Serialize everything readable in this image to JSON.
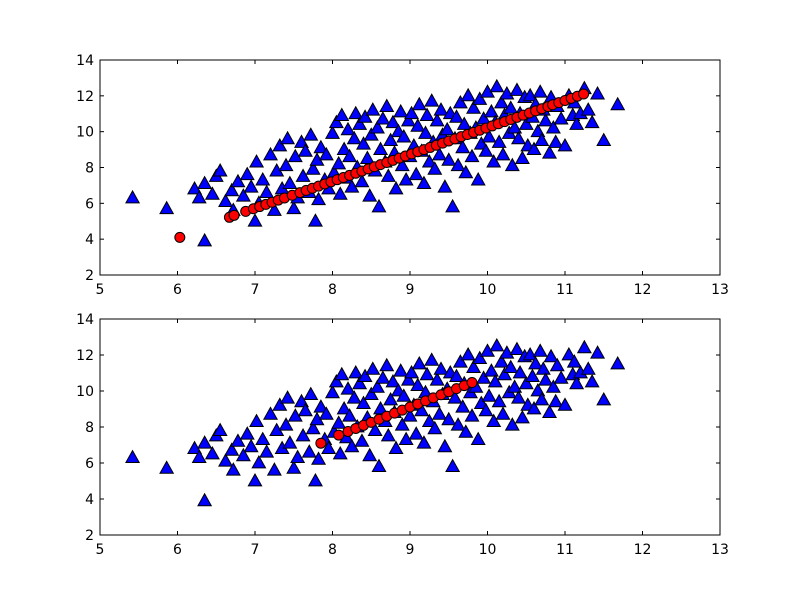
{
  "colors": {
    "triangle_fill": "#0000ff",
    "circle_fill": "#ff0000",
    "marker_edge": "#000000",
    "frame": "#000000",
    "background": "#ffffff"
  },
  "chart_data": [
    {
      "type": "scatter",
      "title": "",
      "xlabel": "",
      "ylabel": "",
      "xlim": [
        5,
        13
      ],
      "ylim": [
        2,
        14
      ],
      "xticks": [
        "5",
        "6",
        "7",
        "8",
        "9",
        "10",
        "11",
        "12",
        "13"
      ],
      "yticks": [
        "2",
        "4",
        "6",
        "8",
        "10",
        "12",
        "14"
      ],
      "grid": false,
      "series": [
        {
          "marker": "triangle",
          "color": "#0000ff",
          "points": [
            [
              5.42,
              6.3
            ],
            [
              5.86,
              5.7
            ],
            [
              6.35,
              3.9
            ],
            [
              6.22,
              6.8
            ],
            [
              6.28,
              6.3
            ],
            [
              6.35,
              7.1
            ],
            [
              6.45,
              6.5
            ],
            [
              6.5,
              7.5
            ],
            [
              6.55,
              7.8
            ],
            [
              6.62,
              6.1
            ],
            [
              6.7,
              6.7
            ],
            [
              6.72,
              5.6
            ],
            [
              6.78,
              7.2
            ],
            [
              6.85,
              6.4
            ],
            [
              6.9,
              7.6
            ],
            [
              6.95,
              6.9
            ],
            [
              7.0,
              5.0
            ],
            [
              7.02,
              8.3
            ],
            [
              7.05,
              6.0
            ],
            [
              7.1,
              7.3
            ],
            [
              7.15,
              6.6
            ],
            [
              7.2,
              8.7
            ],
            [
              7.25,
              5.6
            ],
            [
              7.28,
              7.8
            ],
            [
              7.32,
              9.2
            ],
            [
              7.35,
              6.8
            ],
            [
              7.4,
              8.1
            ],
            [
              7.42,
              9.6
            ],
            [
              7.45,
              7.1
            ],
            [
              7.5,
              5.7
            ],
            [
              7.52,
              8.6
            ],
            [
              7.55,
              6.3
            ],
            [
              7.6,
              9.4
            ],
            [
              7.62,
              7.5
            ],
            [
              7.65,
              8.9
            ],
            [
              7.7,
              6.6
            ],
            [
              7.72,
              9.8
            ],
            [
              7.75,
              7.9
            ],
            [
              7.78,
              5.0
            ],
            [
              7.8,
              8.4
            ],
            [
              7.82,
              6.2
            ],
            [
              7.85,
              9.1
            ],
            [
              7.9,
              7.3
            ],
            [
              7.92,
              8.7
            ],
            [
              7.95,
              6.8
            ],
            [
              8.0,
              9.9
            ],
            [
              8.02,
              7.7
            ],
            [
              8.05,
              10.5
            ],
            [
              8.08,
              8.2
            ],
            [
              8.1,
              6.5
            ],
            [
              8.12,
              10.9
            ],
            [
              8.15,
              9.0
            ],
            [
              8.18,
              7.4
            ],
            [
              8.2,
              10.1
            ],
            [
              8.22,
              8.6
            ],
            [
              8.25,
              6.9
            ],
            [
              8.28,
              9.6
            ],
            [
              8.3,
              11.0
            ],
            [
              8.32,
              8.0
            ],
            [
              8.35,
              10.4
            ],
            [
              8.38,
              7.2
            ],
            [
              8.4,
              9.3
            ],
            [
              8.42,
              10.8
            ],
            [
              8.45,
              8.5
            ],
            [
              8.48,
              6.4
            ],
            [
              8.5,
              9.8
            ],
            [
              8.52,
              11.2
            ],
            [
              8.55,
              7.8
            ],
            [
              8.58,
              10.2
            ],
            [
              8.6,
              5.8
            ],
            [
              8.62,
              9.0
            ],
            [
              8.65,
              10.7
            ],
            [
              8.68,
              8.3
            ],
            [
              8.7,
              11.4
            ],
            [
              8.72,
              7.5
            ],
            [
              8.75,
              9.5
            ],
            [
              8.78,
              10.5
            ],
            [
              8.8,
              8.8
            ],
            [
              8.82,
              6.8
            ],
            [
              8.85,
              10.0
            ],
            [
              8.88,
              11.1
            ],
            [
              8.9,
              8.1
            ],
            [
              8.92,
              9.7
            ],
            [
              8.95,
              7.3
            ],
            [
              8.98,
              10.6
            ],
            [
              9.0,
              8.6
            ],
            [
              9.02,
              11.0
            ],
            [
              9.05,
              9.2
            ],
            [
              9.08,
              7.6
            ],
            [
              9.1,
              10.3
            ],
            [
              9.12,
              11.5
            ],
            [
              9.15,
              8.9
            ],
            [
              9.18,
              7.1
            ],
            [
              9.2,
              9.9
            ],
            [
              9.22,
              10.9
            ],
            [
              9.25,
              8.3
            ],
            [
              9.28,
              11.7
            ],
            [
              9.3,
              9.4
            ],
            [
              9.32,
              7.9
            ],
            [
              9.35,
              10.6
            ],
            [
              9.38,
              8.7
            ],
            [
              9.4,
              11.2
            ],
            [
              9.42,
              9.8
            ],
            [
              9.45,
              6.9
            ],
            [
              9.48,
              10.1
            ],
            [
              9.5,
              8.4
            ],
            [
              9.52,
              11.0
            ],
            [
              9.55,
              5.8
            ],
            [
              9.58,
              9.6
            ],
            [
              9.6,
              10.8
            ],
            [
              9.62,
              8.1
            ],
            [
              9.65,
              11.6
            ],
            [
              9.68,
              9.1
            ],
            [
              9.7,
              10.4
            ],
            [
              9.72,
              7.7
            ],
            [
              9.75,
              12.0
            ],
            [
              9.78,
              9.9
            ],
            [
              9.8,
              8.6
            ],
            [
              9.82,
              11.3
            ],
            [
              9.85,
              10.2
            ],
            [
              9.88,
              7.3
            ],
            [
              9.9,
              11.8
            ],
            [
              9.92,
              9.3
            ],
            [
              9.95,
              10.7
            ],
            [
              9.98,
              8.9
            ],
            [
              10.0,
              12.2
            ],
            [
              10.02,
              9.7
            ],
            [
              10.05,
              11.1
            ],
            [
              10.08,
              8.3
            ],
            [
              10.1,
              10.5
            ],
            [
              10.12,
              12.5
            ],
            [
              10.15,
              9.4
            ],
            [
              10.18,
              11.6
            ],
            [
              10.2,
              8.7
            ],
            [
              10.22,
              10.9
            ],
            [
              10.25,
              12.1
            ],
            [
              10.28,
              9.9
            ],
            [
              10.3,
              11.3
            ],
            [
              10.32,
              8.1
            ],
            [
              10.35,
              10.2
            ],
            [
              10.38,
              12.3
            ],
            [
              10.4,
              9.6
            ],
            [
              10.42,
              11.0
            ],
            [
              10.45,
              8.5
            ],
            [
              10.48,
              11.9
            ],
            [
              10.5,
              10.4
            ],
            [
              10.52,
              9.2
            ],
            [
              10.55,
              12.0
            ],
            [
              10.58,
              10.8
            ],
            [
              10.6,
              9.0
            ],
            [
              10.62,
              11.5
            ],
            [
              10.65,
              10.0
            ],
            [
              10.68,
              12.2
            ],
            [
              10.7,
              9.5
            ],
            [
              10.72,
              11.2
            ],
            [
              10.75,
              10.6
            ],
            [
              10.8,
              8.8
            ],
            [
              10.82,
              11.9
            ],
            [
              10.85,
              10.2
            ],
            [
              10.88,
              9.4
            ],
            [
              10.9,
              11.4
            ],
            [
              10.95,
              10.7
            ],
            [
              11.0,
              9.2
            ],
            [
              11.05,
              12.0
            ],
            [
              11.1,
              10.9
            ],
            [
              11.12,
              11.6
            ],
            [
              11.15,
              10.4
            ],
            [
              11.2,
              11.0
            ],
            [
              11.25,
              12.4
            ],
            [
              11.3,
              11.2
            ],
            [
              11.35,
              10.5
            ],
            [
              11.42,
              12.1
            ],
            [
              11.5,
              9.5
            ],
            [
              11.68,
              11.5
            ]
          ]
        },
        {
          "marker": "circle",
          "color": "#ff0000",
          "points": [
            [
              6.03,
              4.1
            ],
            [
              6.67,
              5.22
            ],
            [
              6.73,
              5.33
            ],
            [
              6.88,
              5.55
            ],
            [
              6.98,
              5.7
            ],
            [
              7.06,
              5.82
            ],
            [
              7.14,
              5.94
            ],
            [
              7.22,
              6.06
            ],
            [
              7.3,
              6.18
            ],
            [
              7.38,
              6.3
            ],
            [
              7.48,
              6.45
            ],
            [
              7.58,
              6.6
            ],
            [
              7.66,
              6.72
            ],
            [
              7.74,
              6.84
            ],
            [
              7.82,
              6.96
            ],
            [
              7.9,
              7.08
            ],
            [
              7.98,
              7.2
            ],
            [
              8.06,
              7.32
            ],
            [
              8.14,
              7.44
            ],
            [
              8.22,
              7.56
            ],
            [
              8.3,
              7.68
            ],
            [
              8.38,
              7.8
            ],
            [
              8.46,
              7.92
            ],
            [
              8.54,
              8.04
            ],
            [
              8.62,
              8.16
            ],
            [
              8.7,
              8.28
            ],
            [
              8.78,
              8.4
            ],
            [
              8.86,
              8.52
            ],
            [
              8.94,
              8.64
            ],
            [
              9.02,
              8.76
            ],
            [
              9.1,
              8.88
            ],
            [
              9.18,
              9.0
            ],
            [
              9.26,
              9.12
            ],
            [
              9.34,
              9.24
            ],
            [
              9.42,
              9.36
            ],
            [
              9.5,
              9.48
            ],
            [
              9.58,
              9.6
            ],
            [
              9.66,
              9.72
            ],
            [
              9.74,
              9.84
            ],
            [
              9.82,
              9.96
            ],
            [
              9.9,
              10.08
            ],
            [
              9.98,
              10.2
            ],
            [
              10.06,
              10.32
            ],
            [
              10.14,
              10.44
            ],
            [
              10.22,
              10.56
            ],
            [
              10.3,
              10.68
            ],
            [
              10.38,
              10.8
            ],
            [
              10.46,
              10.92
            ],
            [
              10.54,
              11.04
            ],
            [
              10.62,
              11.16
            ],
            [
              10.7,
              11.28
            ],
            [
              10.78,
              11.4
            ],
            [
              10.84,
              11.5
            ],
            [
              10.92,
              11.62
            ],
            [
              11.0,
              11.74
            ],
            [
              11.08,
              11.86
            ],
            [
              11.16,
              11.98
            ],
            [
              11.24,
              12.1
            ]
          ]
        }
      ]
    },
    {
      "type": "scatter",
      "title": "",
      "xlabel": "",
      "ylabel": "",
      "xlim": [
        5,
        13
      ],
      "ylim": [
        2,
        14
      ],
      "xticks": [
        "5",
        "6",
        "7",
        "8",
        "9",
        "10",
        "11",
        "12",
        "13"
      ],
      "yticks": [
        "2",
        "4",
        "6",
        "8",
        "10",
        "12",
        "14"
      ],
      "grid": false,
      "series": [
        {
          "marker": "triangle",
          "color": "#0000ff",
          "same_points_as": "chart_data.0.series.0.points"
        },
        {
          "marker": "circle",
          "color": "#ff0000",
          "points": [
            [
              7.85,
              7.1
            ],
            [
              8.08,
              7.55
            ],
            [
              8.2,
              7.75
            ],
            [
              8.3,
              7.92
            ],
            [
              8.4,
              8.09
            ],
            [
              8.5,
              8.26
            ],
            [
              8.6,
              8.43
            ],
            [
              8.7,
              8.6
            ],
            [
              8.8,
              8.77
            ],
            [
              8.9,
              8.94
            ],
            [
              9.0,
              9.11
            ],
            [
              9.1,
              9.28
            ],
            [
              9.2,
              9.45
            ],
            [
              9.3,
              9.62
            ],
            [
              9.4,
              9.79
            ],
            [
              9.5,
              9.96
            ],
            [
              9.6,
              10.13
            ],
            [
              9.7,
              10.3
            ],
            [
              9.8,
              10.47
            ]
          ]
        }
      ]
    }
  ]
}
